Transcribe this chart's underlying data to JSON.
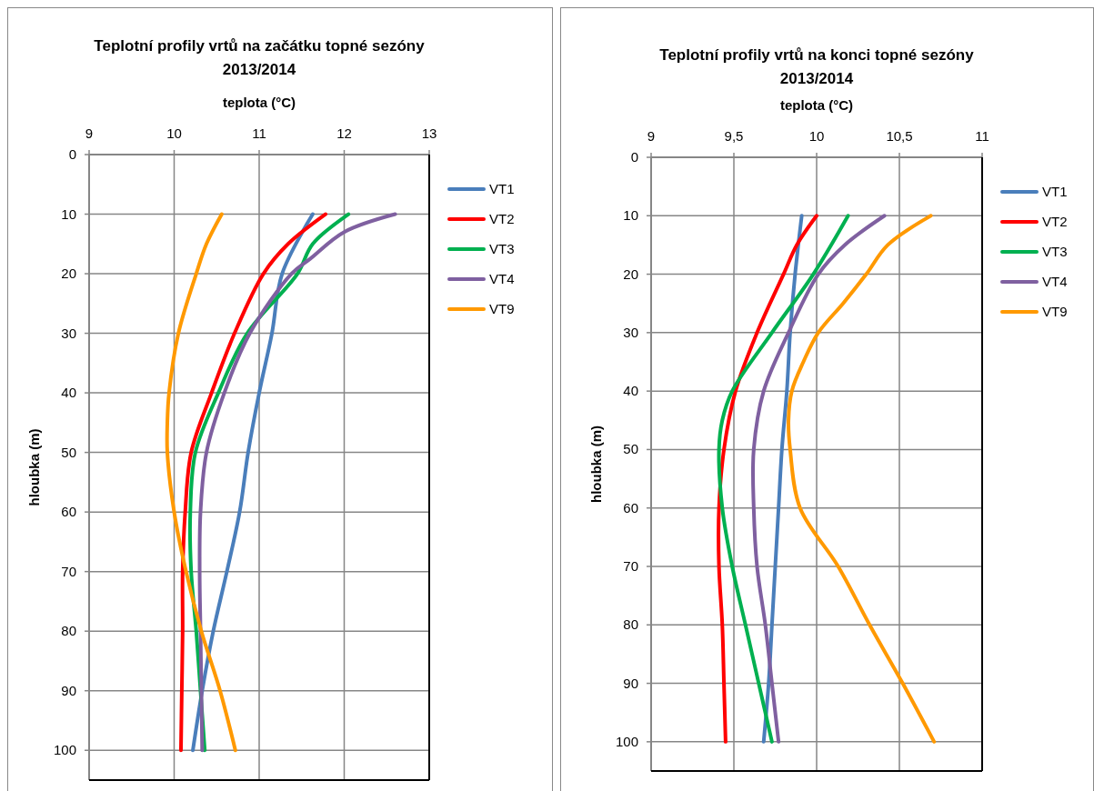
{
  "chart_data": [
    {
      "type": "line",
      "title": "Teplotní profily vrtů na začátku topné sezóny 2013/2014",
      "xlabel": "teplota (°C)",
      "ylabel": "hloubka (m)",
      "xlim": [
        9,
        13
      ],
      "xticks": [
        9,
        10,
        11,
        12,
        13
      ],
      "ylim": [
        105,
        0
      ],
      "yticks": [
        0,
        10,
        20,
        30,
        40,
        50,
        60,
        70,
        80,
        90,
        100
      ],
      "grid": true,
      "legend": "right",
      "marker": "none",
      "line_style": "solid",
      "series": [
        {
          "name": "VT1",
          "color": "#4a7ebb",
          "x": [
            11.63,
            11.27,
            11.15,
            11.0,
            10.87,
            10.77,
            10.62,
            10.46,
            10.33,
            10.22
          ],
          "values": [
            10,
            20,
            30,
            40,
            50,
            60,
            70,
            80,
            90,
            100
          ]
        },
        {
          "name": "VT2",
          "color": "#ff0000",
          "x": [
            11.78,
            11.34,
            11.05,
            10.71,
            10.44,
            10.2,
            10.13,
            10.1,
            10.1,
            10.09,
            10.08
          ],
          "values": [
            10,
            15,
            20,
            30,
            40,
            50,
            60,
            70,
            80,
            90,
            100
          ]
        },
        {
          "name": "VT3",
          "color": "#00b050",
          "x": [
            12.05,
            11.63,
            11.45,
            10.86,
            10.52,
            10.25,
            10.19,
            10.2,
            10.26,
            10.31,
            10.36
          ],
          "values": [
            10,
            15,
            20,
            30,
            40,
            50,
            60,
            70,
            80,
            90,
            100
          ]
        },
        {
          "name": "VT4",
          "color": "#7f60a0",
          "x": [
            12.6,
            12.0,
            11.6,
            11.38,
            10.89,
            10.59,
            10.38,
            10.31,
            10.3,
            10.31,
            10.32,
            10.33
          ],
          "values": [
            10,
            13,
            17.5,
            20,
            30,
            40,
            50,
            60,
            70,
            80,
            90,
            100
          ]
        },
        {
          "name": "VT9",
          "color": "#ff9900",
          "x": [
            10.56,
            10.38,
            10.26,
            10.05,
            9.94,
            9.92,
            9.92,
            10.0,
            10.14,
            10.32,
            10.54,
            10.72
          ],
          "values": [
            10,
            15,
            20,
            30,
            40,
            45,
            50,
            60,
            70,
            80,
            90,
            100
          ]
        }
      ]
    },
    {
      "type": "line",
      "title": "Teplotní profily vrtů na konci topné sezóny 2013/2014",
      "xlabel": "teplota (°C)",
      "ylabel": "hloubka (m)",
      "xlim": [
        9,
        11
      ],
      "xticks": [
        9,
        {
          "value": 9.5,
          "label": "9,5"
        },
        10,
        {
          "value": 10.5,
          "label": "10,5"
        },
        11
      ],
      "ylim": [
        105,
        0
      ],
      "yticks": [
        0,
        10,
        20,
        30,
        40,
        50,
        60,
        70,
        80,
        90,
        100
      ],
      "grid": true,
      "legend": "right",
      "marker": "none",
      "line_style": "solid",
      "series": [
        {
          "name": "VT1",
          "color": "#4a7ebb",
          "x": [
            9.91,
            9.87,
            9.84,
            9.82,
            9.79,
            9.77,
            9.75,
            9.73,
            9.71,
            9.68
          ],
          "values": [
            10,
            20,
            30,
            40,
            50,
            60,
            70,
            80,
            90,
            100
          ]
        },
        {
          "name": "VT2",
          "color": "#ff0000",
          "x": [
            10.0,
            9.88,
            9.8,
            9.64,
            9.51,
            9.44,
            9.41,
            9.41,
            9.43,
            9.44,
            9.45
          ],
          "values": [
            10,
            15,
            20,
            30,
            40,
            50,
            60,
            70,
            80,
            90,
            100
          ]
        },
        {
          "name": "VT3",
          "color": "#00b050",
          "x": [
            10.19,
            9.98,
            9.73,
            9.49,
            9.43,
            9.41,
            9.43,
            9.49,
            9.57,
            9.65,
            9.73
          ],
          "values": [
            10,
            20,
            30,
            40,
            45,
            50,
            60,
            70,
            80,
            90,
            100
          ]
        },
        {
          "name": "VT4",
          "color": "#7f60a0",
          "x": [
            10.41,
            10.17,
            10.01,
            9.83,
            9.68,
            9.62,
            9.62,
            9.64,
            9.69,
            9.73,
            9.77
          ],
          "values": [
            10,
            15,
            20,
            30,
            40,
            50,
            60,
            70,
            80,
            90,
            100
          ]
        },
        {
          "name": "VT9",
          "color": "#ff9900",
          "x": [
            10.69,
            10.43,
            10.3,
            10.16,
            10.01,
            9.92,
            9.85,
            9.83,
            9.84,
            9.9,
            10.13,
            10.32,
            10.52,
            10.71
          ],
          "values": [
            10,
            15,
            20,
            25,
            30,
            35,
            40,
            45,
            50,
            60,
            70,
            80,
            90,
            100
          ]
        }
      ]
    }
  ]
}
